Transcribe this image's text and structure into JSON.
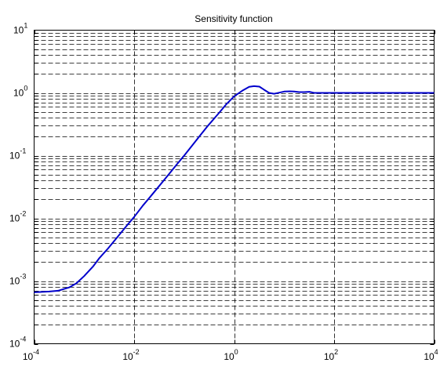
{
  "chart_data": {
    "type": "line",
    "title": "Sensitivity function",
    "xlabel": "",
    "ylabel": "",
    "xscale": "log",
    "yscale": "log",
    "xlim": [
      0.0001,
      10000
    ],
    "ylim": [
      0.0001,
      10
    ],
    "grid": true,
    "legend": "none",
    "x_ticks": [
      {
        "base": "10",
        "exp": "-4"
      },
      {
        "base": "10",
        "exp": "-2"
      },
      {
        "base": "10",
        "exp": "0"
      },
      {
        "base": "10",
        "exp": "2"
      },
      {
        "base": "10",
        "exp": "4"
      }
    ],
    "y_ticks": [
      {
        "base": "10",
        "exp": "-4"
      },
      {
        "base": "10",
        "exp": "-3"
      },
      {
        "base": "10",
        "exp": "-2"
      },
      {
        "base": "10",
        "exp": "-1"
      },
      {
        "base": "10",
        "exp": "0"
      },
      {
        "base": "10",
        "exp": "1"
      }
    ],
    "series": [
      {
        "color": "#0000cc",
        "x": [
          0.0001,
          0.0002,
          0.0003,
          0.0005,
          0.0007,
          0.001,
          0.0015,
          0.002,
          0.003,
          0.005,
          0.007,
          0.01,
          0.015,
          0.02,
          0.03,
          0.05,
          0.07,
          0.1,
          0.15,
          0.2,
          0.3,
          0.5,
          0.7,
          1,
          1.5,
          2,
          2.5,
          3.2,
          4,
          5,
          6.3,
          8,
          10,
          13,
          16,
          20,
          25,
          32,
          40,
          50,
          100,
          1000,
          10000
        ],
        "y": [
          0.00066,
          0.00068,
          0.0007,
          0.00079,
          0.00092,
          0.0012,
          0.0017,
          0.0023,
          0.0033,
          0.0054,
          0.0075,
          0.0105,
          0.016,
          0.021,
          0.031,
          0.051,
          0.071,
          0.1,
          0.15,
          0.2,
          0.3,
          0.48,
          0.66,
          0.88,
          1.1,
          1.25,
          1.28,
          1.26,
          1.12,
          1.0,
          0.97,
          1.01,
          1.05,
          1.06,
          1.05,
          1.03,
          1.03,
          1.04,
          1.0,
          1.0,
          1.0,
          1.0,
          1.0
        ]
      }
    ]
  }
}
